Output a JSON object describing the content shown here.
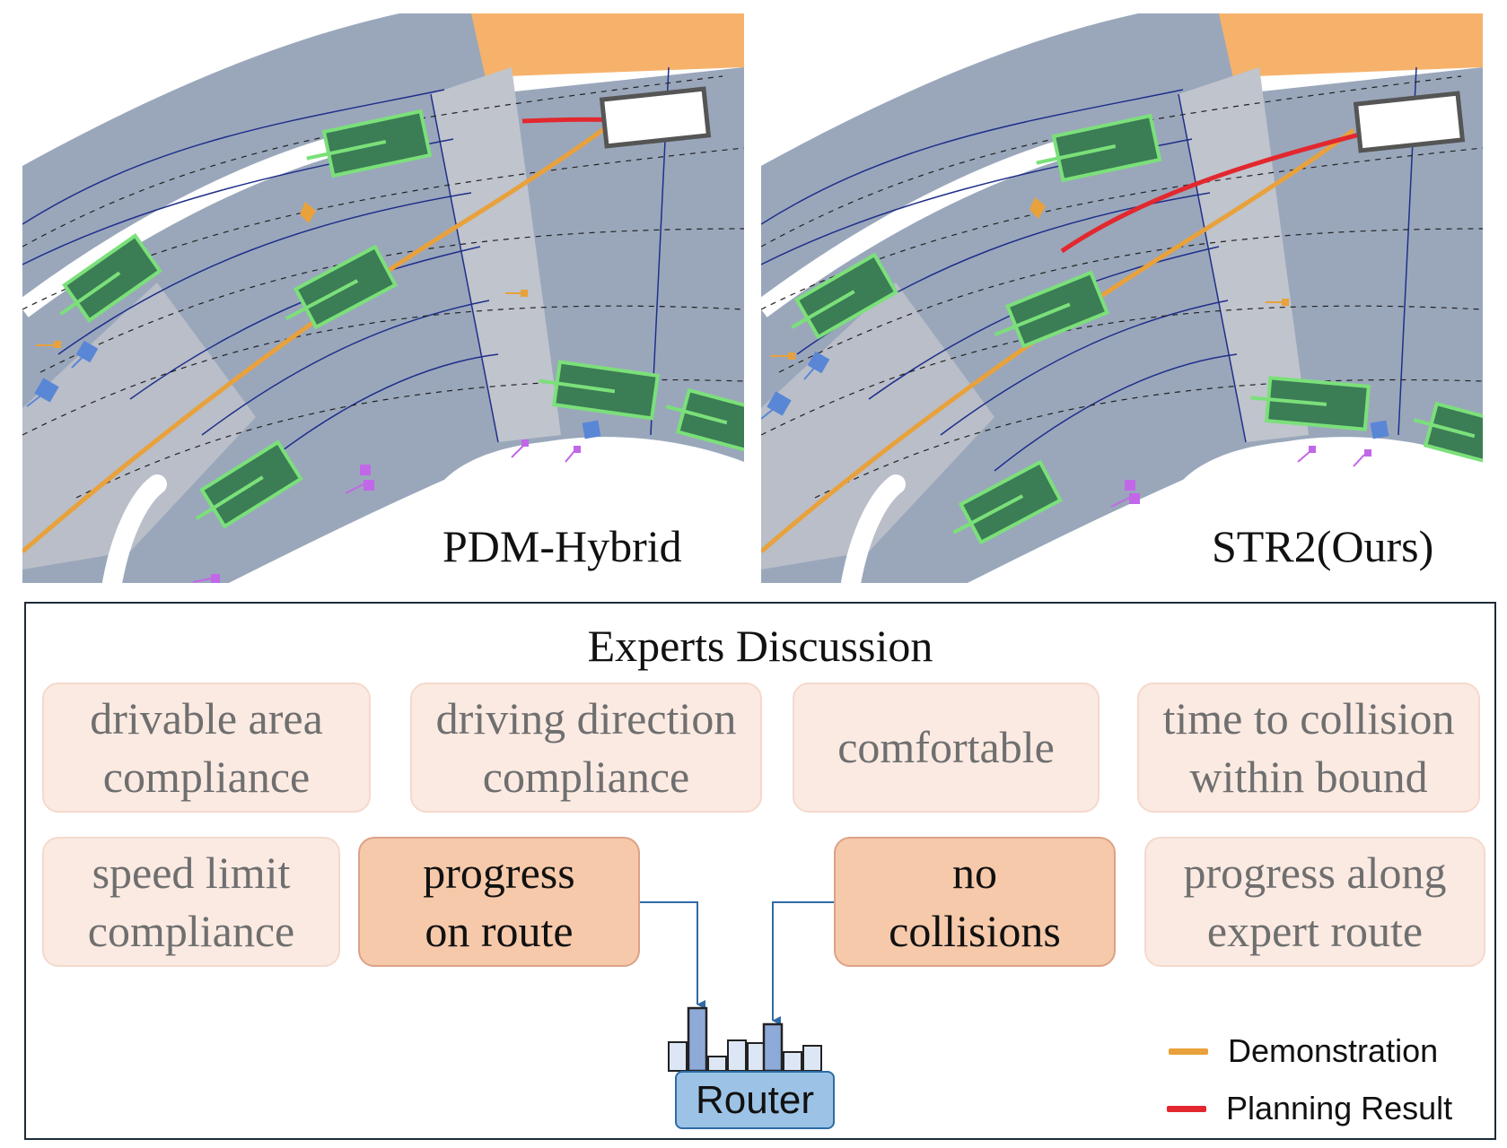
{
  "panels": [
    {
      "label": "PDM-Hybrid"
    },
    {
      "label": "STR2(Ours)"
    }
  ],
  "discussion": {
    "title": "Experts Discussion",
    "experts": [
      {
        "label": "drivable area\ncompliance",
        "state": "faded"
      },
      {
        "label": "driving direction\ncompliance",
        "state": "faded"
      },
      {
        "label": "comfortable",
        "state": "faded"
      },
      {
        "label": "time to collision\nwithin bound",
        "state": "faded"
      },
      {
        "label": "speed limit\ncompliance",
        "state": "faded"
      },
      {
        "label": "progress\non route",
        "state": "active"
      },
      {
        "label": "no\ncollisions",
        "state": "active"
      },
      {
        "label": "progress along\nexpert route",
        "state": "faded"
      }
    ],
    "router": {
      "label": "Router"
    }
  },
  "legend": [
    {
      "label": "Demonstration",
      "color": "#e9a13b"
    },
    {
      "label": "Planning Result",
      "color": "#e2282e"
    }
  ],
  "colors": {
    "road": "#9aa7bb",
    "road_light": "#c0c4cc",
    "lane_line": "#1f2f8a",
    "vehicle_fill": "#3b7d54",
    "vehicle_outline": "#7be07a",
    "demo_path": "#e9a13b",
    "plan_path": "#e2282e",
    "offroad": "#f6b26b"
  }
}
